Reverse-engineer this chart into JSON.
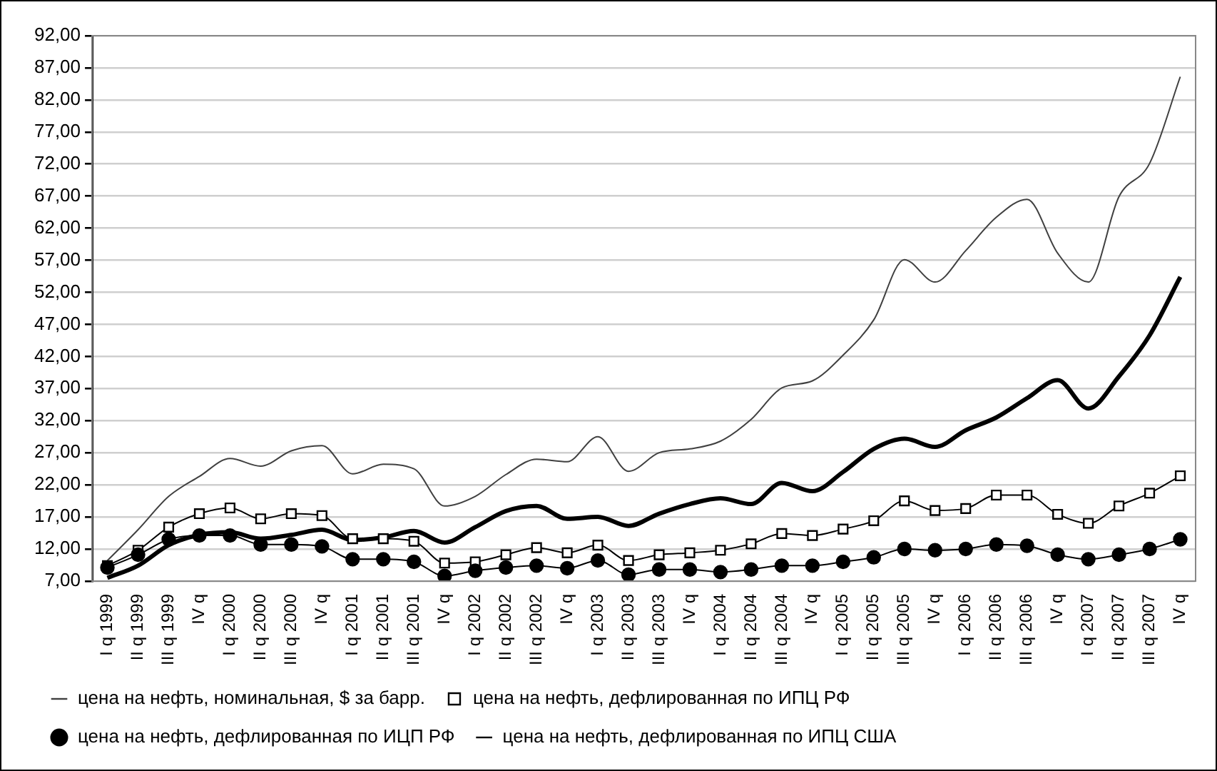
{
  "chart_data": {
    "type": "line",
    "categories": [
      "I q 1999",
      "II q 1999",
      "III q 1999",
      "IV q",
      "I q 2000",
      "II q 2000",
      "III q 2000",
      "IV q",
      "I q 2001",
      "II q 2001",
      "III q 2001",
      "IV q",
      "I q 2002",
      "II q 2002",
      "III q 2002",
      "IV q",
      "I q 2003",
      "II q 2003",
      "III q 2003",
      "IV q",
      "I q 2004",
      "II q 2004",
      "III q 2004",
      "IV q",
      "I q 2005",
      "II q 2005",
      "III q 2005",
      "IV q",
      "I q 2006",
      "II q 2006",
      "III q 2006",
      "IV q",
      "I q 2007",
      "II q 2007",
      "III q 2007",
      "IV q"
    ],
    "series": [
      {
        "name": "цена на нефть, номинальная, $ за барр.",
        "color": "#404040",
        "marker": "none",
        "values": [
          10.2,
          15.0,
          20.2,
          23.3,
          26.1,
          24.9,
          27.3,
          28.1,
          23.7,
          25.2,
          24.5,
          18.7,
          20.2,
          23.6,
          26.0,
          25.6,
          29.5,
          24.1,
          27.0,
          27.6,
          28.8,
          32.2,
          37.1,
          38.2,
          42.2,
          47.7,
          57.1,
          53.6,
          58.5,
          63.7,
          66.5,
          58.1,
          53.6,
          66.9,
          72.1,
          85.6
        ]
      },
      {
        "name": "цена на нефть, дефлированная по ИПЦ РФ",
        "color": "#000000",
        "marker": "square",
        "values": [
          9.4,
          11.8,
          15.4,
          17.5,
          18.4,
          16.7,
          17.5,
          17.2,
          13.6,
          13.6,
          13.2,
          9.8,
          10.0,
          11.1,
          12.2,
          11.4,
          12.6,
          10.2,
          11.1,
          11.4,
          11.8,
          12.8,
          14.4,
          14.1,
          15.1,
          16.4,
          19.5,
          18.0,
          18.3,
          20.4,
          20.4,
          17.4,
          16.0,
          18.7,
          20.7,
          23.4
        ]
      },
      {
        "name": "цена на нефть, дефлированная по ИЦП РФ",
        "color": "#000000",
        "marker": "circle",
        "values": [
          9.1,
          11.1,
          13.5,
          14.1,
          14.1,
          12.7,
          12.7,
          12.4,
          10.4,
          10.4,
          10.0,
          7.8,
          8.6,
          9.1,
          9.4,
          9.0,
          10.2,
          8.0,
          8.8,
          8.8,
          8.4,
          8.8,
          9.4,
          9.4,
          10.0,
          10.7,
          12.0,
          11.8,
          12.0,
          12.7,
          12.5,
          11.1,
          10.4,
          11.1,
          12.0,
          13.5
        ]
      },
      {
        "name": "цена на нефть, дефлированная по ИПЦ США",
        "color": "#000000",
        "marker": "none",
        "values": [
          7.5,
          9.4,
          12.6,
          14.2,
          14.6,
          13.6,
          14.2,
          15.0,
          13.4,
          13.8,
          14.8,
          13.0,
          15.4,
          17.9,
          18.7,
          16.7,
          17.0,
          15.6,
          17.5,
          19.0,
          19.9,
          19.0,
          22.3,
          21.0,
          24.0,
          27.6,
          29.2,
          27.9,
          30.5,
          32.5,
          35.5,
          38.3,
          33.9,
          38.9,
          45.3,
          54.4
        ]
      }
    ],
    "ylim": [
      7,
      92
    ],
    "yticks": [
      {
        "value": 7,
        "label": "7,00"
      },
      {
        "value": 12,
        "label": "12,00"
      },
      {
        "value": 17,
        "label": "17,00"
      },
      {
        "value": 22,
        "label": "22,00"
      },
      {
        "value": 27,
        "label": "27,00"
      },
      {
        "value": 32,
        "label": "32,00"
      },
      {
        "value": 37,
        "label": "37,00"
      },
      {
        "value": 42,
        "label": "42,00"
      },
      {
        "value": 47,
        "label": "47,00"
      },
      {
        "value": 52,
        "label": "52,00"
      },
      {
        "value": 57,
        "label": "57,00"
      },
      {
        "value": 62,
        "label": "62,00"
      },
      {
        "value": 67,
        "label": "67,00"
      },
      {
        "value": 72,
        "label": "72,00"
      },
      {
        "value": 77,
        "label": "77,00"
      },
      {
        "value": 82,
        "label": "82,00"
      },
      {
        "value": 87,
        "label": "87,00"
      },
      {
        "value": 92,
        "label": "92,00"
      }
    ],
    "grid": "y",
    "legend": "bottom"
  }
}
